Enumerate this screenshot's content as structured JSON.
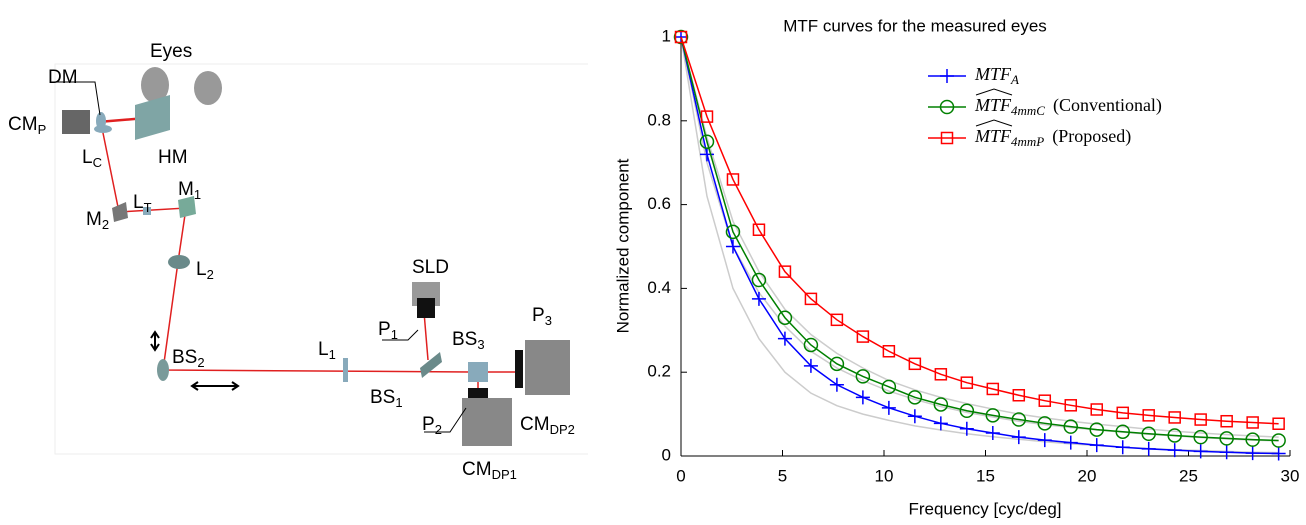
{
  "diagram": {
    "labels": [
      {
        "main": "Eyes"
      },
      {
        "main": "DM"
      },
      {
        "main": "CM",
        "sub": "P"
      },
      {
        "main": "L",
        "sub": "C"
      },
      {
        "main": "HM"
      },
      {
        "main": "L",
        "sub": "T"
      },
      {
        "main": "M",
        "sub": "1"
      },
      {
        "main": "M",
        "sub": "2"
      },
      {
        "main": "L",
        "sub": "2"
      },
      {
        "main": "SLD"
      },
      {
        "main": "P",
        "sub": "1"
      },
      {
        "main": "BS",
        "sub": "2"
      },
      {
        "main": "L",
        "sub": "1"
      },
      {
        "main": "BS",
        "sub": "3"
      },
      {
        "main": "P",
        "sub": "3"
      },
      {
        "main": "BS",
        "sub": "1"
      },
      {
        "main": "P",
        "sub": "2"
      },
      {
        "main": "CM",
        "sub": "DP2"
      },
      {
        "main": "CM",
        "sub": "DP1"
      }
    ]
  },
  "chart_data": {
    "type": "line",
    "title": "MTF curves for the measured eyes",
    "x_label": "Frequency [cyc/deg]",
    "y_label": "Normalized component",
    "x": [
      0,
      1.28,
      2.56,
      3.84,
      5.12,
      6.4,
      7.68,
      8.96,
      10.24,
      11.52,
      12.8,
      14.08,
      15.36,
      16.64,
      17.92,
      19.2,
      20.48,
      21.76,
      23.04,
      24.32,
      25.6,
      26.88,
      28.16,
      29.44
    ],
    "xlim": [
      0,
      30
    ],
    "xticks": [
      0,
      5,
      10,
      15,
      20,
      25,
      30
    ],
    "ylim": [
      0,
      1
    ],
    "yticks": [
      0,
      0.2,
      0.4,
      0.6,
      0.8,
      1
    ],
    "series": [
      {
        "color": "#cccccc",
        "values": [
          1,
          0.62,
          0.4,
          0.28,
          0.2,
          0.15,
          0.12,
          0.1,
          0.085,
          0.072,
          0.062,
          0.053,
          0.046,
          0.04,
          0.034,
          0.029,
          0.025,
          0.021,
          0.018,
          0.015,
          0.013,
          0.011,
          0.009,
          0.008
        ]
      },
      {
        "color": "#cccccc",
        "values": [
          1,
          0.7,
          0.5,
          0.39,
          0.31,
          0.25,
          0.21,
          0.18,
          0.155,
          0.135,
          0.118,
          0.104,
          0.093,
          0.083,
          0.075,
          0.068,
          0.062,
          0.057,
          0.052,
          0.048,
          0.044,
          0.041,
          0.038,
          0.036
        ]
      },
      {
        "color": "#cccccc",
        "values": [
          1,
          0.76,
          0.56,
          0.44,
          0.35,
          0.29,
          0.245,
          0.21,
          0.18,
          0.158,
          0.14,
          0.125,
          0.112,
          0.1,
          0.091,
          0.083,
          0.076,
          0.07,
          0.064,
          0.059,
          0.055,
          0.051,
          0.048,
          0.045
        ]
      },
      {
        "name": "MTF",
        "sub": "A",
        "color": "#0000ff",
        "marker": "plus",
        "values": [
          1,
          0.72,
          0.5,
          0.375,
          0.28,
          0.215,
          0.17,
          0.14,
          0.115,
          0.095,
          0.078,
          0.065,
          0.055,
          0.045,
          0.038,
          0.032,
          0.026,
          0.021,
          0.017,
          0.014,
          0.011,
          0.009,
          0.007,
          0.006
        ]
      },
      {
        "name": "MTF",
        "sub": "4mmC",
        "hat": true,
        "note": "(Conventional)",
        "color": "#008000",
        "marker": "circle",
        "values": [
          1,
          0.75,
          0.535,
          0.42,
          0.33,
          0.265,
          0.22,
          0.19,
          0.165,
          0.14,
          0.123,
          0.108,
          0.097,
          0.087,
          0.078,
          0.07,
          0.063,
          0.058,
          0.053,
          0.049,
          0.045,
          0.042,
          0.039,
          0.037
        ]
      },
      {
        "name": "MTF",
        "sub": "4mmP",
        "hat": true,
        "note": "(Proposed)",
        "color": "#ff0000",
        "marker": "square",
        "values": [
          1,
          0.81,
          0.66,
          0.54,
          0.44,
          0.375,
          0.325,
          0.285,
          0.25,
          0.22,
          0.195,
          0.175,
          0.16,
          0.145,
          0.132,
          0.121,
          0.111,
          0.103,
          0.097,
          0.092,
          0.087,
          0.083,
          0.08,
          0.077
        ]
      }
    ]
  }
}
